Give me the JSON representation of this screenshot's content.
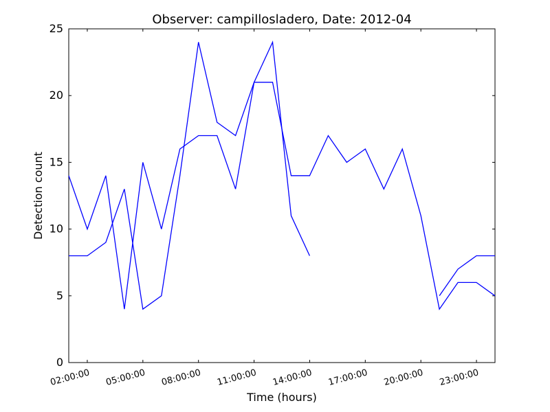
{
  "chart_data": {
    "type": "line",
    "title": "Observer: campillosladero, Date: 2012-04",
    "xlabel": "Time (hours)",
    "ylabel": "Detection count",
    "xlim": [
      "01:00:00",
      "24:00:00"
    ],
    "ylim": [
      0,
      25
    ],
    "yticks": [
      0,
      5,
      10,
      15,
      20,
      25
    ],
    "xticks": [
      "02:00:00",
      "05:00:00",
      "08:00:00",
      "11:00:00",
      "14:00:00",
      "17:00:00",
      "20:00:00",
      "23:00:00"
    ],
    "grid": false,
    "line_color": "#0000ff",
    "series": [
      {
        "segments": [
          {
            "x": [
              "01:00:00",
              "02:00:00",
              "03:00:00",
              "04:00:00",
              "05:00:00",
              "06:00:00",
              "07:00:00",
              "08:00:00",
              "09:00:00",
              "10:00:00",
              "11:00:00",
              "12:00:00",
              "13:00:00",
              "14:00:00"
            ],
            "y": [
              14,
              10,
              14,
              4,
              15,
              10,
              16,
              17,
              17,
              13,
              21,
              24,
              11,
              8
            ]
          }
        ]
      },
      {
        "segments": [
          {
            "x": [
              "01:00:00",
              "02:00:00",
              "03:00:00",
              "04:00:00",
              "05:00:00",
              "06:00:00",
              "07:00:00",
              "08:00:00",
              "09:00:00",
              "10:00:00",
              "11:00:00",
              "12:00:00",
              "13:00:00",
              "14:00:00",
              "15:00:00",
              "16:00:00",
              "17:00:00",
              "18:00:00",
              "19:00:00",
              "20:00:00",
              "21:00:00",
              "22:00:00",
              "23:00:00",
              "24:00:00"
            ],
            "y": [
              8,
              8,
              9,
              13,
              4,
              5,
              14,
              24,
              18,
              17,
              21,
              21,
              14,
              14,
              17,
              15,
              16,
              13,
              16,
              11,
              4,
              6,
              6,
              5
            ]
          }
        ]
      },
      {
        "segments": [
          {
            "x": [
              "21:00:00",
              "22:00:00",
              "23:00:00",
              "24:00:00"
            ],
            "y": [
              5,
              7,
              8,
              8
            ]
          }
        ]
      }
    ]
  }
}
